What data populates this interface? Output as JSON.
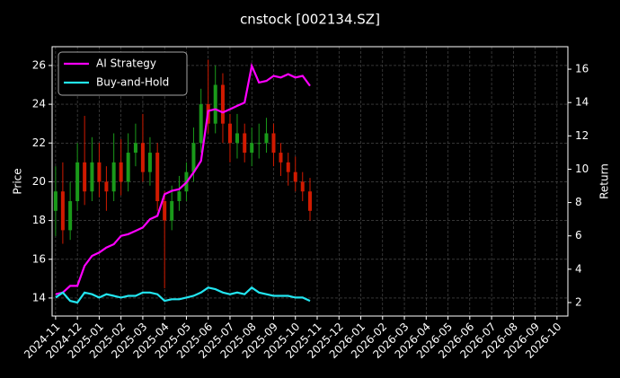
{
  "chart_data": {
    "type": "candlestick",
    "title": "cnstock [002134.SZ]",
    "ylabel": "Price",
    "y2label": "Return",
    "up_color": "#1a9a1a",
    "down_color": "#d01a00",
    "x": [
      0,
      0.33,
      0.67,
      1,
      1.33,
      1.67,
      2,
      2.33,
      2.67,
      3,
      3.33,
      3.67,
      4,
      4.33,
      4.67,
      5,
      5.33,
      5.67,
      6,
      6.33,
      6.67,
      7,
      7.33,
      7.67,
      8,
      8.33,
      8.67,
      9,
      9.33,
      9.67,
      10,
      10.33,
      10.67,
      11,
      11.33,
      11.67
    ],
    "open": [
      18.5,
      19.5,
      17.5,
      19,
      21,
      19.5,
      21,
      20,
      19.5,
      21,
      20,
      21.5,
      22,
      20.5,
      21.5,
      19,
      18,
      19,
      19.5,
      20.5,
      22,
      24,
      23,
      25,
      23,
      22,
      22.5,
      21.5,
      22,
      22,
      22.5,
      21.5,
      21,
      20.5,
      20,
      19.5
    ],
    "high": [
      20.8,
      21,
      20,
      22,
      23.4,
      22.3,
      22,
      20.8,
      22.5,
      22.2,
      22.5,
      23,
      23.5,
      22.3,
      22,
      19.5,
      19.8,
      20.3,
      21,
      22.8,
      24.8,
      26.3,
      26,
      25.6,
      23.5,
      23.5,
      23,
      22.8,
      23,
      23.3,
      23,
      22,
      21.5,
      21.3,
      20.5,
      20.2
    ],
    "low": [
      17.2,
      16.8,
      17,
      18.5,
      18.8,
      19,
      19.2,
      18.5,
      19,
      19.3,
      19.5,
      20.8,
      20,
      19.8,
      18.5,
      14.5,
      17.5,
      18.5,
      19,
      20,
      21.5,
      22.5,
      22.5,
      22,
      21,
      21.2,
      21,
      20.8,
      21.2,
      21.5,
      20.8,
      20.3,
      19.8,
      19.5,
      19,
      18
    ],
    "close": [
      19.5,
      17.5,
      19,
      21,
      19.5,
      21,
      20,
      19.5,
      21,
      20,
      21.5,
      22,
      20.5,
      21.5,
      19,
      18,
      19,
      19.5,
      20.5,
      22,
      24,
      23,
      25,
      23,
      22,
      22.5,
      21.5,
      22,
      22,
      22.5,
      21.5,
      21,
      20.5,
      20,
      19.5,
      18.5
    ],
    "series": [
      {
        "name": "AI Strategy",
        "color": "#ff00ff",
        "axis": "y2",
        "values": [
          2.5,
          2.6,
          3.0,
          3.0,
          4.2,
          4.8,
          5.0,
          5.3,
          5.5,
          6.0,
          6.1,
          6.3,
          6.5,
          7.0,
          7.2,
          8.5,
          8.7,
          8.8,
          9.2,
          9.8,
          10.5,
          13.5,
          13.6,
          13.4,
          13.6,
          13.8,
          14.0,
          16.2,
          15.2,
          15.3,
          15.6,
          15.5,
          15.7,
          15.5,
          15.6,
          15.0
        ]
      },
      {
        "name": "Buy-and-Hold",
        "color": "#22e5f0",
        "axis": "y2",
        "values": [
          2.3,
          2.6,
          2.1,
          2.0,
          2.6,
          2.5,
          2.3,
          2.5,
          2.4,
          2.3,
          2.4,
          2.4,
          2.6,
          2.6,
          2.5,
          2.1,
          2.2,
          2.2,
          2.3,
          2.4,
          2.6,
          2.9,
          2.8,
          2.6,
          2.5,
          2.6,
          2.5,
          2.9,
          2.6,
          2.5,
          2.4,
          2.4,
          2.4,
          2.3,
          2.3,
          2.1
        ]
      }
    ],
    "xlim": [
      -0.16,
      23.5
    ],
    "xticks": [
      {
        "value": 0,
        "label": "2024-11"
      },
      {
        "value": 1,
        "label": "2024-12"
      },
      {
        "value": 2,
        "label": "2025-01"
      },
      {
        "value": 3,
        "label": "2025-02"
      },
      {
        "value": 4,
        "label": "2025-03"
      },
      {
        "value": 5,
        "label": "2025-04"
      },
      {
        "value": 6,
        "label": "2025-05"
      },
      {
        "value": 7,
        "label": "2025-06"
      },
      {
        "value": 8,
        "label": "2025-07"
      },
      {
        "value": 9,
        "label": "2025-08"
      },
      {
        "value": 10,
        "label": "2025-09"
      },
      {
        "value": 11,
        "label": "2025-10"
      },
      {
        "value": 12,
        "label": "2025-11"
      },
      {
        "value": 13,
        "label": "2025-12"
      },
      {
        "value": 14,
        "label": "2026-01"
      },
      {
        "value": 15,
        "label": "2026-02"
      },
      {
        "value": 16,
        "label": "2026-03"
      },
      {
        "value": 17,
        "label": "2026-04"
      },
      {
        "value": 18,
        "label": "2026-05"
      },
      {
        "value": 19,
        "label": "2026-06"
      },
      {
        "value": 20,
        "label": "2026-07"
      },
      {
        "value": 21,
        "label": "2026-08"
      },
      {
        "value": 22,
        "label": "2026-09"
      },
      {
        "value": 23,
        "label": "2026-10"
      }
    ],
    "ylim": [
      13.07,
      26.97
    ],
    "yticks": [
      14,
      16,
      18,
      20,
      22,
      24,
      26
    ],
    "y2lim": [
      1.19,
      17.35
    ],
    "y2ticks": [
      2,
      4,
      6,
      8,
      10,
      12,
      14,
      16
    ],
    "grid": true,
    "legend": "upper left"
  }
}
